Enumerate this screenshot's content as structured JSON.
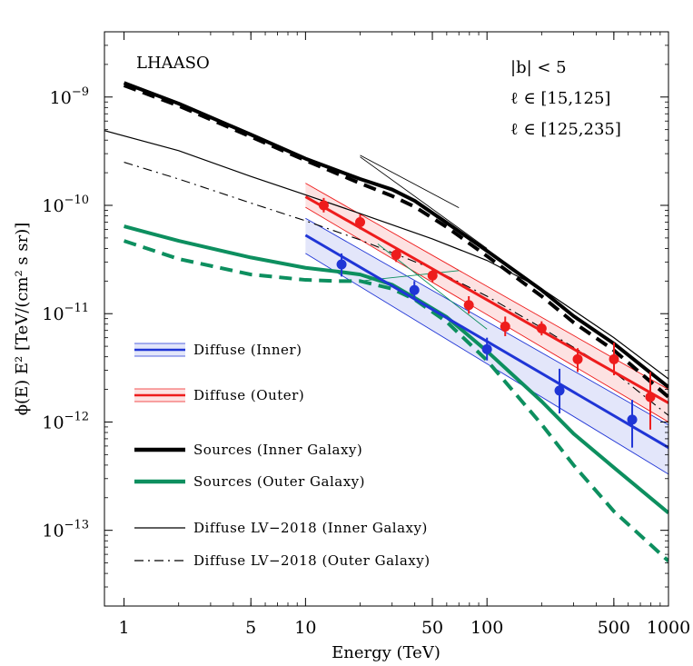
{
  "colors": {
    "blue": "#1f35d6",
    "blue_band": "rgba(70,85,220,0.15)",
    "red": "#ee1c1c",
    "red_band": "rgba(240,60,60,0.15)",
    "green": "#0d8f5f",
    "black": "#000000"
  },
  "chart_data": {
    "type": "line",
    "xlabel": "Energy (TeV)",
    "ylabel": "ϕ(E) E²   [TeV/(cm² s sr)]",
    "xscale": "log",
    "yscale": "log",
    "xlim": [
      0.78,
      1000
    ],
    "ylim": [
      2e-14,
      4e-09
    ],
    "x_ticks": [
      1,
      5,
      10,
      50,
      100,
      500,
      1000
    ],
    "x_tick_labels": [
      "1",
      "5",
      "10",
      "50",
      "100",
      "500",
      "1000"
    ],
    "y_ticks": [
      1e-13,
      1e-12,
      1e-11,
      1e-10,
      1e-09
    ],
    "y_tick_labels": [
      {
        "base": "10",
        "exp": "−13"
      },
      {
        "base": "10",
        "exp": "−12"
      },
      {
        "base": "10",
        "exp": "−11"
      },
      {
        "base": "10",
        "exp": "−10"
      },
      {
        "base": "10",
        "exp": "−9"
      }
    ],
    "annotations": {
      "experiment": "LHAASO",
      "region_b": "|b| < 5",
      "region_inner": "ℓ ∈ [15,125]",
      "region_outer": "ℓ ∈ [125,235]"
    },
    "legend": [
      {
        "label": "Diffuse (Inner)",
        "style": "band-blue"
      },
      {
        "label": "Diffuse (Outer)",
        "style": "band-red"
      },
      {
        "label": "Sources (Inner Galaxy)",
        "style": "thick-black"
      },
      {
        "label": "Sources (Outer Galaxy)",
        "style": "thick-green"
      },
      {
        "label": "Diffuse LV−2018 (Inner Galaxy)",
        "style": "thin-black"
      },
      {
        "label": "Diffuse LV−2018 (Outer Galaxy)",
        "style": "dashdot-black"
      }
    ],
    "series": [
      {
        "name": "Diffuse (Inner)",
        "kind": "power-law-band",
        "x": [
          10,
          1000
        ],
        "y": [
          5.3e-11,
          5.8e-13
        ],
        "y_low": [
          3.6e-11,
          3.3e-13
        ],
        "y_high": [
          7.6e-11,
          9.4e-13
        ]
      },
      {
        "name": "Diffuse (Outer)",
        "kind": "power-law-band",
        "x": [
          10,
          1000
        ],
        "y": [
          1.2e-10,
          1.5e-12
        ],
        "y_low": [
          9.6e-11,
          1e-12
        ],
        "y_high": [
          1.6e-10,
          2e-12
        ]
      },
      {
        "name": "Diffuse (Inner) data",
        "kind": "points",
        "x": [
          15.8,
          39.8,
          100,
          251,
          631
        ],
        "y": [
          2.85e-11,
          1.65e-11,
          4.7e-12,
          1.95e-12,
          1.05e-12
        ],
        "y_err_low": [
          2.2e-11,
          1.35e-11,
          3.7e-12,
          1.2e-12,
          5.8e-13
        ],
        "y_err_high": [
          3.6e-11,
          2e-11,
          6e-12,
          3.1e-12,
          1.6e-12
        ]
      },
      {
        "name": "Diffuse (Outer) data",
        "kind": "points",
        "x": [
          12.6,
          20.0,
          31.6,
          50.1,
          79.4,
          126,
          200,
          316,
          501,
          794
        ],
        "y": [
          1e-10,
          7e-11,
          3.5e-11,
          2.25e-11,
          1.2e-11,
          7.6e-12,
          7.3e-12,
          3.8e-12,
          3.8e-12,
          1.7e-12
        ],
        "y_err_low": [
          8.6e-11,
          6e-11,
          3e-11,
          1.95e-11,
          1e-11,
          6.2e-12,
          6.3e-12,
          2.9e-12,
          2.7e-12,
          8.5e-13
        ],
        "y_err_high": [
          1.17e-10,
          8.2e-11,
          4e-11,
          2.6e-11,
          1.45e-11,
          9.4e-12,
          8.5e-12,
          4.8e-12,
          5.4e-12,
          2.9e-12
        ]
      },
      {
        "name": "Sources (Inner Galaxy)",
        "kind": "line",
        "x": [
          1,
          2,
          5,
          10,
          20,
          30,
          40,
          60,
          100,
          200,
          300,
          500,
          1000
        ],
        "y": [
          1.35e-09,
          8.7e-10,
          4.5e-10,
          2.7e-10,
          1.75e-10,
          1.4e-10,
          1.1e-10,
          6.9e-11,
          3.8e-11,
          1.65e-11,
          9.5e-12,
          5.3e-12,
          2.1e-12
        ]
      },
      {
        "name": "Sources (Inner Galaxy) alt",
        "kind": "dashed",
        "x": [
          1,
          2,
          5,
          10,
          20,
          30,
          40,
          60,
          100,
          200,
          300,
          500,
          1000
        ],
        "y": [
          1.28e-09,
          8.3e-10,
          4.3e-10,
          2.6e-10,
          1.6e-10,
          1.22e-10,
          9.7e-11,
          6.3e-11,
          3.4e-11,
          1.45e-11,
          8.3e-12,
          4.6e-12,
          1.7e-12
        ]
      },
      {
        "name": "Sources (Outer Galaxy)",
        "kind": "line",
        "x": [
          1,
          2,
          5,
          10,
          15,
          20,
          30,
          40,
          60,
          100,
          200,
          300,
          500,
          1000
        ],
        "y": [
          6.4e-11,
          4.7e-11,
          3.3e-11,
          2.65e-11,
          2.45e-11,
          2.3e-11,
          1.85e-11,
          1.4e-11,
          9.3e-12,
          4.5e-12,
          1.55e-12,
          7.8e-13,
          3.8e-13,
          1.45e-13
        ]
      },
      {
        "name": "Sources (Outer Galaxy) alt",
        "kind": "dashed",
        "x": [
          1,
          2,
          5,
          10,
          15,
          20,
          30,
          40,
          60,
          100,
          200,
          300,
          500,
          1000
        ],
        "y": [
          4.7e-11,
          3.2e-11,
          2.3e-11,
          2.05e-11,
          2e-11,
          2e-11,
          1.7e-11,
          1.35e-11,
          8.4e-12,
          3.7e-12,
          9.5e-13,
          4e-13,
          1.5e-13,
          5.2e-14
        ]
      },
      {
        "name": "Diffuse LV−2018 (Inner Galaxy)",
        "kind": "thin",
        "x": [
          0.78,
          2,
          5,
          10,
          20,
          50,
          100,
          200,
          500,
          1000
        ],
        "y": [
          4.9e-10,
          3.2e-10,
          1.85e-10,
          1.25e-10,
          8.4e-11,
          4.9e-11,
          3.1e-11,
          1.7e-11,
          6e-12,
          2.5e-12
        ]
      },
      {
        "name": "Diffuse LV−2018 (Outer Galaxy)",
        "kind": "dashdot",
        "x": [
          1,
          2,
          5,
          10,
          20,
          50,
          100,
          200,
          500,
          1000
        ],
        "y": [
          2.5e-10,
          1.75e-10,
          1.05e-10,
          7.2e-11,
          4.8e-11,
          2.6e-11,
          1.45e-11,
          7.4e-12,
          2.9e-12,
          1.15e-12
        ]
      },
      {
        "name": "fit-inner-low",
        "kind": "fit",
        "x": [
          20,
          70
        ],
        "y": [
          2.9e-10,
          9.5e-11
        ]
      },
      {
        "name": "fit-inner-high",
        "kind": "fit",
        "x": [
          20,
          100
        ],
        "y": [
          2.8e-10,
          4e-11
        ]
      },
      {
        "name": "fit-outer-low",
        "kind": "fit-green",
        "x": [
          20,
          70
        ],
        "y": [
          2e-11,
          2.5e-11
        ]
      },
      {
        "name": "fit-outer-high",
        "kind": "fit-green",
        "x": [
          25,
          100
        ],
        "y": [
          4.4e-11,
          7.2e-12
        ]
      }
    ]
  }
}
